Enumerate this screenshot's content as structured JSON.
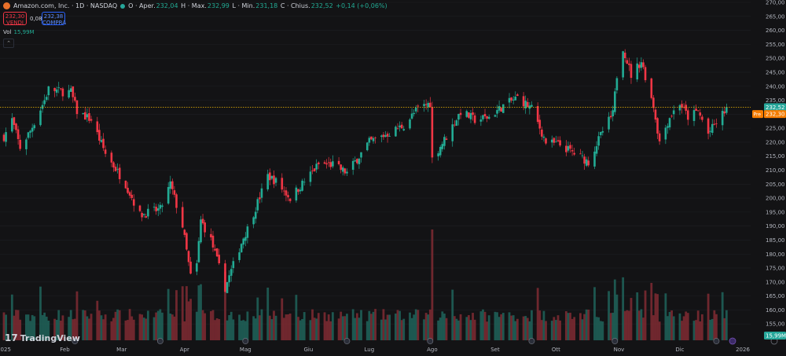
{
  "header": {
    "symbol": "Amazon.com, Inc. · 1D · NASDAQ",
    "o_label": "O · Aper.",
    "o_val": "232,04",
    "h_label": "H · Max.",
    "h_val": "232,99",
    "l_label": "L · Min.",
    "l_val": "231,18",
    "c_label": "C · Chius.",
    "c_val": "232,52",
    "change": "+0,14 (+0,06%)"
  },
  "trade": {
    "sell_price": "232,30",
    "sell_label": "VENDI",
    "spread": "0,08",
    "buy_price": "232,38",
    "buy_label": "COMPRA"
  },
  "volume": {
    "label": "Vol",
    "value": "15,99M",
    "badge": "15,99M"
  },
  "watermark": "TradingView",
  "colors": {
    "up": "#22ab94",
    "down": "#f23645",
    "bg": "#131315",
    "price_line": "#f2b705",
    "axis_text": "#b2b5be"
  },
  "chart_data": {
    "type": "candlestick",
    "last_price": 232.52,
    "last_price_label": "232,52",
    "pre_label": "Pre",
    "pre_price": 232.3,
    "pre_price_label": "232,30",
    "ylim": [
      150,
      270
    ],
    "y_ticks": [
      "155,00",
      "160,00",
      "165,00",
      "170,00",
      "175,00",
      "180,00",
      "185,00",
      "190,00",
      "195,00",
      "200,00",
      "205,00",
      "210,00",
      "215,00",
      "220,00",
      "225,00",
      "230,00",
      "235,00",
      "240,00",
      "245,00",
      "250,00",
      "255,00",
      "260,00",
      "265,00",
      "270,00"
    ],
    "x_labels": [
      "2025",
      "Feb",
      "Mar",
      "Apr",
      "Mag",
      "Giu",
      "Lug",
      "Ago",
      "Set",
      "Ott",
      "Nov",
      "Dic",
      "2026"
    ],
    "anchors": [
      [
        "2025-01-02",
        222
      ],
      [
        "2025-01-06",
        228
      ],
      [
        "2025-01-10",
        218
      ],
      [
        "2025-01-15",
        224
      ],
      [
        "2025-01-22",
        235
      ],
      [
        "2025-01-24",
        239
      ],
      [
        "2025-01-31",
        238
      ],
      [
        "2025-02-04",
        238
      ],
      [
        "2025-02-07",
        231
      ],
      [
        "2025-02-14",
        228
      ],
      [
        "2025-02-21",
        216
      ],
      [
        "2025-03-03",
        205
      ],
      [
        "2025-03-10",
        194
      ],
      [
        "2025-03-20",
        196
      ],
      [
        "2025-03-25",
        205
      ],
      [
        "2025-03-31",
        190
      ],
      [
        "2025-04-04",
        172
      ],
      [
        "2025-04-07",
        176
      ],
      [
        "2025-04-09",
        192
      ],
      [
        "2025-04-14",
        185
      ],
      [
        "2025-04-21",
        168
      ],
      [
        "2025-04-30",
        186
      ],
      [
        "2025-05-02",
        189
      ],
      [
        "2025-05-12",
        208
      ],
      [
        "2025-05-16",
        206
      ],
      [
        "2025-05-23",
        200
      ],
      [
        "2025-06-06",
        212
      ],
      [
        "2025-06-13",
        212
      ],
      [
        "2025-06-20",
        209
      ],
      [
        "2025-07-01",
        220
      ],
      [
        "2025-07-10",
        223
      ],
      [
        "2025-07-18",
        226
      ],
      [
        "2025-07-25",
        232
      ],
      [
        "2025-07-31",
        234
      ],
      [
        "2025-08-01",
        214
      ],
      [
        "2025-08-08",
        222
      ],
      [
        "2025-08-15",
        231
      ],
      [
        "2025-08-22",
        228
      ],
      [
        "2025-08-29",
        229
      ],
      [
        "2025-09-05",
        233
      ],
      [
        "2025-09-12",
        236
      ],
      [
        "2025-09-19",
        232
      ],
      [
        "2025-09-26",
        220
      ],
      [
        "2025-10-03",
        219
      ],
      [
        "2025-10-10",
        216
      ],
      [
        "2025-10-17",
        213
      ],
      [
        "2025-10-24",
        224
      ],
      [
        "2025-10-29",
        230
      ],
      [
        "2025-10-31",
        244
      ],
      [
        "2025-11-03",
        254
      ],
      [
        "2025-11-07",
        244
      ],
      [
        "2025-11-12",
        249
      ],
      [
        "2025-11-18",
        233
      ],
      [
        "2025-11-21",
        220
      ],
      [
        "2025-11-26",
        229
      ],
      [
        "2025-12-01",
        234
      ],
      [
        "2025-12-05",
        229
      ],
      [
        "2025-12-10",
        231
      ],
      [
        "2025-12-15",
        223
      ],
      [
        "2025-12-19",
        227
      ],
      [
        "2025-12-24",
        232
      ]
    ]
  }
}
